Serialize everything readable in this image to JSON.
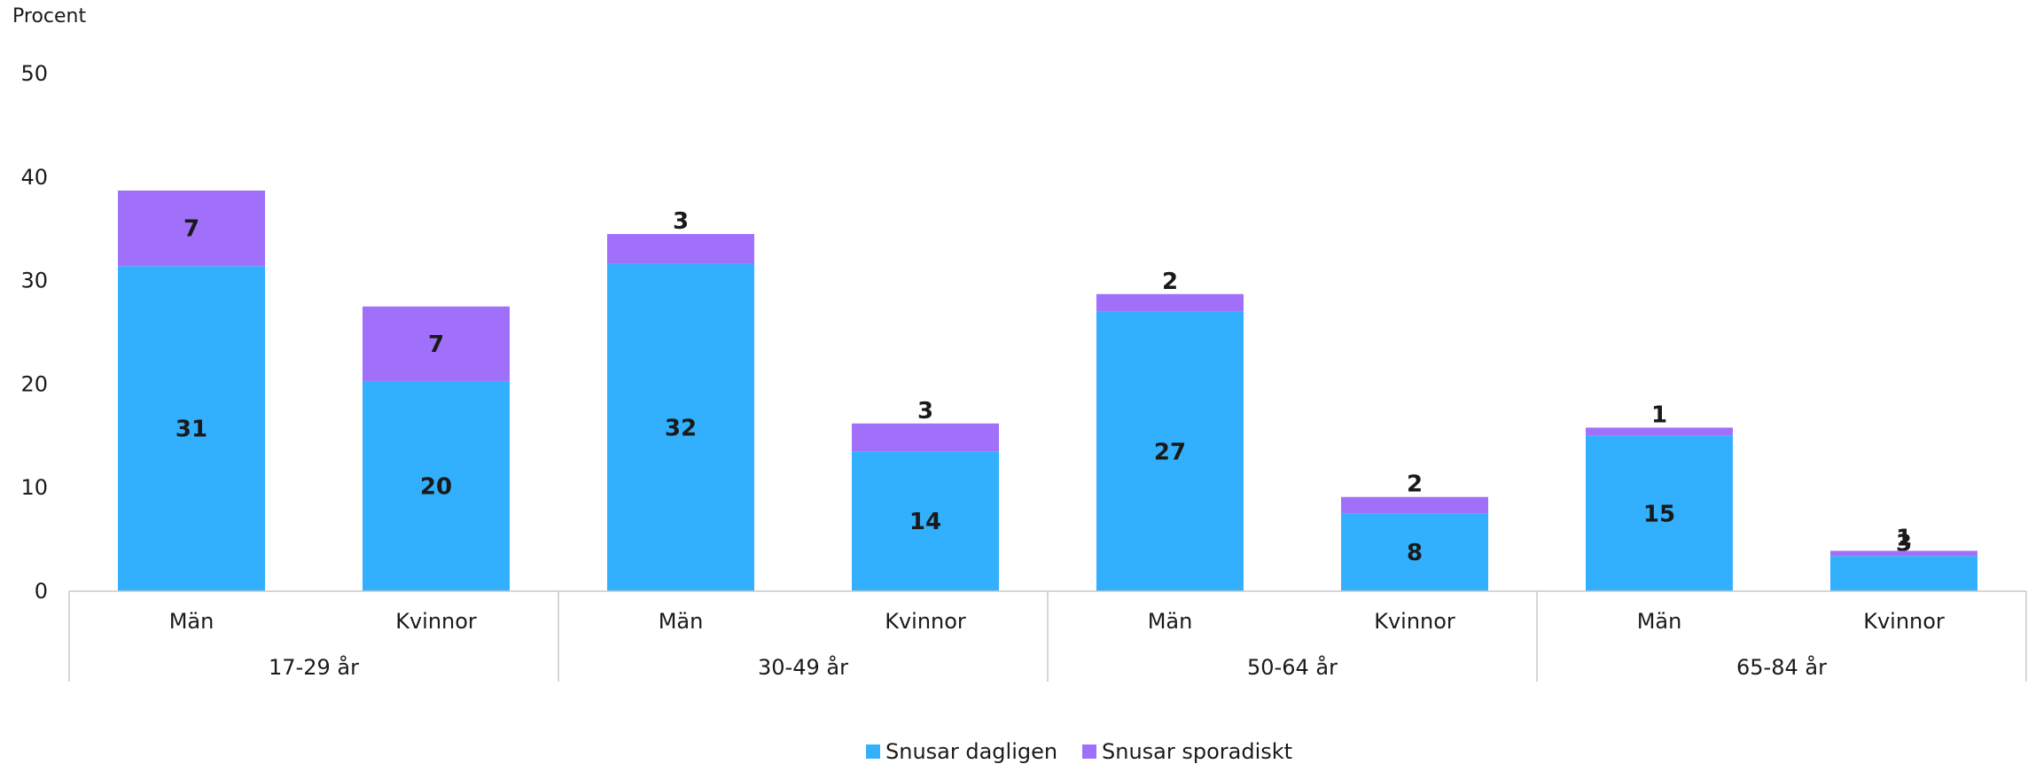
{
  "chart_data": {
    "type": "bar",
    "stacked": true,
    "ylabel": "Procent",
    "ylim": [
      0,
      50
    ],
    "yticks": [
      0,
      10,
      20,
      30,
      40,
      50
    ],
    "grid": false,
    "legend_position": "bottom",
    "groups": [
      {
        "label": "17-29 år",
        "categories": [
          "Män",
          "Kvinnor"
        ]
      },
      {
        "label": "30-49 år",
        "categories": [
          "Män",
          "Kvinnor"
        ]
      },
      {
        "label": "50-64 år",
        "categories": [
          "Män",
          "Kvinnor"
        ]
      },
      {
        "label": "65-84 år",
        "categories": [
          "Män",
          "Kvinnor"
        ]
      }
    ],
    "categories": [
      "Män",
      "Kvinnor",
      "Män",
      "Kvinnor",
      "Män",
      "Kvinnor",
      "Män",
      "Kvinnor"
    ],
    "series": [
      {
        "name": "Snusar dagligen",
        "color": "#33b0fd",
        "values": [
          31.4,
          20.3,
          31.6,
          13.5,
          27.0,
          7.5,
          15.0,
          3.4
        ],
        "labels": [
          "31",
          "20",
          "32",
          "14",
          "27",
          "8",
          "15",
          "3"
        ]
      },
      {
        "name": "Snusar sporadiskt",
        "color": "#a070fb",
        "values": [
          7.3,
          7.2,
          2.9,
          2.7,
          1.7,
          1.6,
          0.8,
          0.5
        ],
        "labels": [
          "7",
          "7",
          "3",
          "3",
          "2",
          "2",
          "1",
          "1"
        ]
      }
    ]
  }
}
